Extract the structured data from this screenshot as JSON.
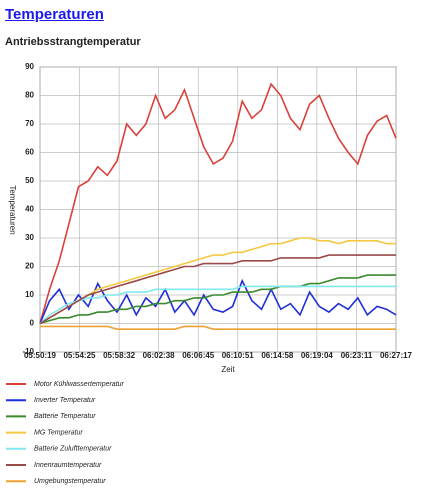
{
  "header": {
    "title": "Temperaturen",
    "subtitle": "Antriebsstrangtemperatur"
  },
  "chart_data": {
    "type": "line",
    "xlabel": "Zeit",
    "ylabel": "Temperaturen",
    "xlim": [
      21019,
      23237
    ],
    "xticks": [
      {
        "value": 21019,
        "label": "05:50:19"
      },
      {
        "value": 21265,
        "label": "05:54:25"
      },
      {
        "value": 21512,
        "label": "05:58:32"
      },
      {
        "value": 21758,
        "label": "06:02:38"
      },
      {
        "value": 22005,
        "label": "06:06:45"
      },
      {
        "value": 22251,
        "label": "06:10:51"
      },
      {
        "value": 22498,
        "label": "06:14:58"
      },
      {
        "value": 22744,
        "label": "06:19:04"
      },
      {
        "value": 22991,
        "label": "06:23:11"
      },
      {
        "value": 23237,
        "label": "06:27:17"
      }
    ],
    "ylim": [
      -10,
      90
    ],
    "yticks": [
      -10,
      0,
      10,
      20,
      30,
      40,
      50,
      60,
      70,
      80,
      90
    ],
    "grid": true,
    "x": [
      21019,
      21079,
      21139,
      21199,
      21259,
      21319,
      21379,
      21439,
      21499,
      21559,
      21619,
      21679,
      21739,
      21799,
      21859,
      21919,
      21979,
      22039,
      22099,
      22159,
      22219,
      22279,
      22339,
      22399,
      22459,
      22519,
      22579,
      22639,
      22699,
      22759,
      22819,
      22879,
      22939,
      22999,
      23059,
      23119,
      23179,
      23237
    ],
    "series": [
      {
        "name": "Motor Kühlwassertemperatur",
        "color": "#d9413a",
        "values": [
          0,
          12,
          22,
          35,
          48,
          50,
          55,
          52,
          57,
          70,
          66,
          70,
          80,
          72,
          75,
          82,
          72,
          62,
          56,
          58,
          64,
          78,
          72,
          75,
          84,
          80,
          72,
          68,
          77,
          80,
          72,
          65,
          60,
          56,
          66,
          71,
          73,
          65
        ]
      },
      {
        "name": "Inverter Temperatur",
        "color": "#1f2fd6",
        "values": [
          0,
          8,
          12,
          5,
          10,
          6,
          14,
          8,
          4,
          10,
          3,
          9,
          6,
          12,
          4,
          8,
          3,
          10,
          5,
          4,
          6,
          15,
          8,
          5,
          12,
          5,
          7,
          3,
          11,
          6,
          4,
          7,
          5,
          9,
          3,
          6,
          5,
          3
        ]
      },
      {
        "name": "Batterie Temperatur",
        "color": "#3a8a2e",
        "values": [
          0,
          1,
          2,
          2,
          3,
          3,
          4,
          4,
          5,
          5,
          6,
          6,
          7,
          7,
          8,
          8,
          9,
          9,
          10,
          10,
          11,
          11,
          11,
          12,
          12,
          13,
          13,
          13,
          14,
          14,
          15,
          16,
          16,
          16,
          17,
          17,
          17,
          17
        ]
      },
      {
        "name": "MG Temperatur",
        "color": "#f5c842",
        "values": [
          0,
          2,
          4,
          6,
          8,
          10,
          12,
          13,
          14,
          15,
          16,
          17,
          18,
          19,
          20,
          21,
          22,
          23,
          24,
          24,
          25,
          25,
          26,
          27,
          28,
          28,
          29,
          30,
          30,
          29,
          29,
          28,
          29,
          29,
          29,
          29,
          28,
          28
        ]
      },
      {
        "name": "Batterie Zulufttemperatur",
        "color": "#80e8f0",
        "values": [
          0,
          3,
          5,
          7,
          8,
          9,
          9,
          10,
          10,
          11,
          11,
          11,
          12,
          12,
          12,
          12,
          12,
          12,
          12,
          12,
          12,
          13,
          13,
          13,
          13,
          13,
          13,
          13,
          13,
          13,
          13,
          13,
          13,
          13,
          13,
          13,
          13,
          13
        ]
      },
      {
        "name": "Innenraumtemperatur",
        "color": "#9b4a4a",
        "values": [
          0,
          2,
          4,
          6,
          8,
          10,
          11,
          12,
          13,
          14,
          15,
          16,
          17,
          18,
          19,
          20,
          20,
          21,
          21,
          21,
          21,
          22,
          22,
          22,
          22,
          23,
          23,
          23,
          23,
          23,
          24,
          24,
          24,
          24,
          24,
          24,
          24,
          24
        ]
      },
      {
        "name": "Umgebungstemperatur",
        "color": "#f0a030",
        "values": [
          -1,
          -1,
          -1,
          -1,
          -1,
          -1,
          -1,
          -1,
          -2,
          -2,
          -2,
          -2,
          -2,
          -2,
          -2,
          -1,
          -1,
          -1,
          -2,
          -2,
          -2,
          -2,
          -2,
          -2,
          -2,
          -2,
          -2,
          -2,
          -2,
          -2,
          -2,
          -2,
          -2,
          -2,
          -2,
          -2,
          -2,
          -2
        ]
      }
    ]
  }
}
